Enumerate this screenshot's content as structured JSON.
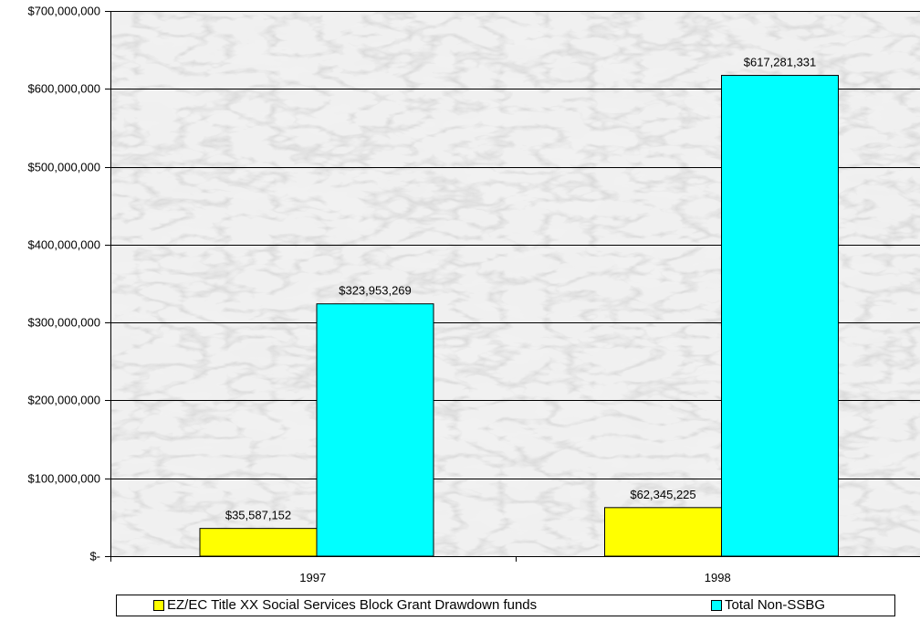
{
  "chart_data": {
    "type": "bar",
    "categories": [
      "1997",
      "1998"
    ],
    "series": [
      {
        "name": "EZ/EC Title XX Social Services Block Grant Drawdown funds",
        "values": [
          35587152,
          62345225
        ],
        "labels": [
          "$35,587,152",
          "$62,345,225"
        ],
        "color": "#ffff00"
      },
      {
        "name": "Total Non-SSBG",
        "values": [
          323953269,
          617281331
        ],
        "labels": [
          "$323,953,269",
          "$617,281,331"
        ],
        "color": "#00ffff"
      }
    ],
    "ylim": [
      0,
      700000000
    ],
    "y_ticks": [
      0,
      100000000,
      200000000,
      300000000,
      400000000,
      500000000,
      600000000,
      700000000
    ],
    "y_tick_labels": [
      "$-",
      "$100,000,000",
      "$200,000,000",
      "$300,000,000",
      "$400,000,000",
      "$500,000,000",
      "$600,000,000",
      "$700,000,000"
    ],
    "grid": true,
    "background": "gray marble texture",
    "legend_position": "bottom"
  }
}
